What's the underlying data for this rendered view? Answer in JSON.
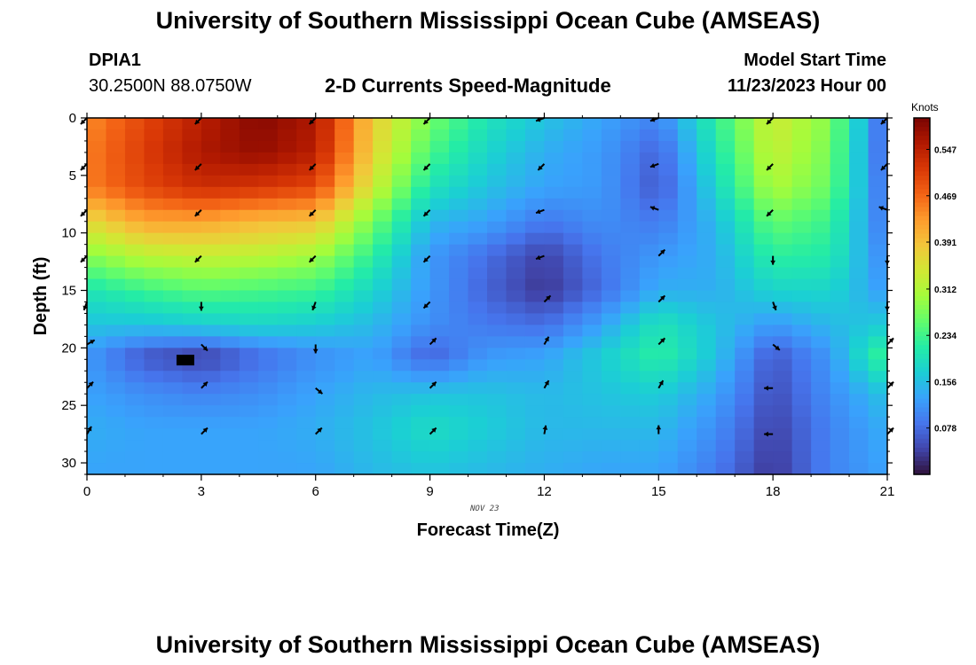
{
  "header": {
    "title": "University of Southern Mississippi Ocean Cube (AMSEAS)",
    "footer_title": "University of Southern Mississippi Ocean Cube (AMSEAS)",
    "station_id": "DPIA1",
    "station_coords": "30.2500N  88.0750W",
    "chart_title": "2-D Currents Speed-Magnitude",
    "model_start_label": "Model Start Time",
    "model_start_value": "11/23/2023 Hour 00"
  },
  "chart_data": {
    "type": "heatmap",
    "title": "2-D Currents Speed-Magnitude",
    "xlabel": "Forecast Time(Z)",
    "ylabel": "Depth (ft)",
    "date_label": "NOV 23",
    "colorbar_label": "Knots",
    "xlim": [
      0,
      21
    ],
    "ylim": [
      31,
      0
    ],
    "x_ticks": [
      0,
      3,
      6,
      9,
      12,
      15,
      18,
      21
    ],
    "y_ticks": [
      0,
      5,
      10,
      15,
      20,
      25,
      30
    ],
    "colorbar_range": [
      0,
      0.6
    ],
    "colorbar_ticks": [
      "0.547",
      "0.469",
      "0.391",
      "0.312",
      "0.234",
      "0.156",
      "0.078"
    ],
    "colorbar_tick_values": [
      0.547,
      0.469,
      0.391,
      0.312,
      0.234,
      0.156,
      0.078
    ],
    "colormap": [
      "#30123b",
      "#4145ab",
      "#4675ed",
      "#39a2fc",
      "#1bcfd4",
      "#24eca6",
      "#61fc6c",
      "#a4fc3b",
      "#d1e834",
      "#f3c63a",
      "#fe9b2d",
      "#f36315",
      "#d93806",
      "#b11901",
      "#7a0402"
    ],
    "speed_field": {
      "hours": [
        0,
        1.5,
        3,
        4.5,
        6,
        7.5,
        9,
        10.5,
        12,
        13.5,
        15,
        16.5,
        18,
        19.5,
        21
      ],
      "depths": [
        0,
        3,
        6,
        9,
        12,
        15,
        18,
        20.7,
        24,
        27,
        31
      ],
      "values": [
        [
          0.44,
          0.5,
          0.55,
          0.59,
          0.56,
          0.38,
          0.27,
          0.2,
          0.16,
          0.13,
          0.1,
          0.22,
          0.34,
          0.28,
          0.06
        ],
        [
          0.45,
          0.51,
          0.56,
          0.58,
          0.55,
          0.37,
          0.24,
          0.18,
          0.14,
          0.12,
          0.07,
          0.2,
          0.33,
          0.27,
          0.06
        ],
        [
          0.45,
          0.5,
          0.53,
          0.52,
          0.5,
          0.34,
          0.2,
          0.16,
          0.13,
          0.12,
          0.06,
          0.18,
          0.31,
          0.26,
          0.07
        ],
        [
          0.36,
          0.42,
          0.42,
          0.4,
          0.39,
          0.27,
          0.15,
          0.13,
          0.09,
          0.11,
          0.09,
          0.15,
          0.26,
          0.23,
          0.08
        ],
        [
          0.28,
          0.32,
          0.33,
          0.32,
          0.3,
          0.22,
          0.12,
          0.08,
          0.04,
          0.09,
          0.12,
          0.14,
          0.22,
          0.21,
          0.1
        ],
        [
          0.2,
          0.23,
          0.25,
          0.24,
          0.23,
          0.18,
          0.12,
          0.07,
          0.03,
          0.08,
          0.14,
          0.14,
          0.18,
          0.18,
          0.12
        ],
        [
          0.16,
          0.16,
          0.17,
          0.18,
          0.17,
          0.15,
          0.11,
          0.09,
          0.08,
          0.13,
          0.2,
          0.16,
          0.12,
          0.15,
          0.17
        ],
        [
          0.12,
          0.06,
          0.04,
          0.08,
          0.11,
          0.13,
          0.07,
          0.12,
          0.13,
          0.17,
          0.22,
          0.16,
          0.06,
          0.12,
          0.24
        ],
        [
          0.13,
          0.11,
          0.1,
          0.11,
          0.13,
          0.15,
          0.16,
          0.16,
          0.15,
          0.16,
          0.17,
          0.13,
          0.05,
          0.11,
          0.16
        ],
        [
          0.14,
          0.13,
          0.13,
          0.13,
          0.14,
          0.16,
          0.19,
          0.17,
          0.15,
          0.15,
          0.15,
          0.11,
          0.04,
          0.1,
          0.14
        ],
        [
          0.13,
          0.13,
          0.13,
          0.13,
          0.13,
          0.15,
          0.16,
          0.15,
          0.14,
          0.13,
          0.13,
          0.09,
          0.03,
          0.1,
          0.13
        ]
      ]
    },
    "vectors": {
      "hours": [
        0,
        3,
        6,
        9,
        12,
        15,
        18,
        21
      ],
      "depths": [
        0,
        4,
        8,
        12,
        16,
        19.7,
        23.5,
        27.5
      ],
      "angles_deg": [
        [
          225,
          225,
          225,
          225,
          200,
          200,
          225,
          225
        ],
        [
          225,
          225,
          225,
          225,
          225,
          200,
          225,
          225
        ],
        [
          225,
          225,
          225,
          225,
          200,
          160,
          225,
          160
        ],
        [
          225,
          225,
          225,
          225,
          200,
          45,
          270,
          270
        ],
        [
          250,
          270,
          250,
          225,
          45,
          45,
          290,
          270
        ],
        [
          30,
          315,
          270,
          45,
          60,
          45,
          320,
          45
        ],
        [
          45,
          45,
          320,
          45,
          60,
          60,
          180,
          45
        ],
        [
          60,
          45,
          45,
          45,
          80,
          90,
          180,
          45
        ]
      ]
    }
  }
}
